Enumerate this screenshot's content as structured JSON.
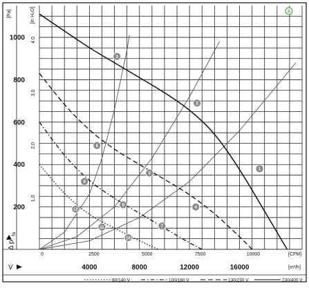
{
  "chart_data": {
    "type": "line",
    "title": "",
    "badge": "A",
    "axes": {
      "x_bottom": {
        "unit": "[m³/h]",
        "range": [
          0,
          21000
        ],
        "ticks": [
          4000,
          8000,
          12000,
          16000
        ]
      },
      "x_top": {
        "unit": "[CFM]",
        "ticks": [
          0,
          2500,
          5000,
          7500,
          10000
        ]
      },
      "y_left": {
        "unit": "[Pa]",
        "range": [
          0,
          1150
        ],
        "ticks": [
          200,
          400,
          600,
          800,
          1000
        ]
      },
      "y_inner": {
        "unit": "[in H₂O]",
        "ticks": [
          1.0,
          2.0,
          3.0,
          4.0
        ]
      },
      "y_symbol": "Δ p",
      "y_symbol_sub": "fa",
      "x_symbol": "V̇"
    },
    "grid": true,
    "legend_position": "bottom",
    "series": [
      {
        "name": "230/400 V",
        "style": "solid",
        "points": [
          [
            0,
            1110
          ],
          [
            2000,
            1030
          ],
          [
            4000,
            950
          ],
          [
            6000,
            880
          ],
          [
            8000,
            810
          ],
          [
            10000,
            740
          ],
          [
            12000,
            660
          ],
          [
            14000,
            550
          ],
          [
            16000,
            380
          ],
          [
            18000,
            180
          ],
          [
            19800,
            0
          ]
        ]
      },
      {
        "name": "130/230 V",
        "style": "dashed",
        "points": [
          [
            0,
            830
          ],
          [
            2000,
            680
          ],
          [
            4000,
            560
          ],
          [
            6000,
            470
          ],
          [
            8000,
            400
          ],
          [
            10000,
            330
          ],
          [
            12000,
            260
          ],
          [
            14000,
            170
          ],
          [
            16000,
            60
          ],
          [
            17000,
            0
          ]
        ]
      },
      {
        "name": "100/180 V",
        "style": "dashdot",
        "points": [
          [
            0,
            600
          ],
          [
            2000,
            440
          ],
          [
            4000,
            320
          ],
          [
            6000,
            240
          ],
          [
            8000,
            170
          ],
          [
            10000,
            100
          ],
          [
            12000,
            30
          ],
          [
            13000,
            0
          ]
        ]
      },
      {
        "name": "80/140 V",
        "style": "dotted",
        "points": [
          [
            0,
            400
          ],
          [
            2000,
            260
          ],
          [
            4000,
            160
          ],
          [
            6000,
            100
          ],
          [
            8000,
            40
          ],
          [
            9500,
            0
          ]
        ]
      }
    ],
    "system_curves": [
      {
        "points": [
          [
            0,
            0
          ],
          [
            2000,
            80
          ],
          [
            4000,
            260
          ],
          [
            5000,
            430
          ],
          [
            6000,
            660
          ],
          [
            7000,
            940
          ],
          [
            7200,
            1010
          ]
        ]
      },
      {
        "points": [
          [
            0,
            0
          ],
          [
            3000,
            60
          ],
          [
            6000,
            200
          ],
          [
            9000,
            430
          ],
          [
            12000,
            720
          ],
          [
            14400,
            980
          ]
        ]
      },
      {
        "points": [
          [
            0,
            0
          ],
          [
            4000,
            40
          ],
          [
            8000,
            150
          ],
          [
            12000,
            320
          ],
          [
            16000,
            560
          ],
          [
            20500,
            880
          ]
        ]
      }
    ],
    "operating_points": [
      {
        "label": "1",
        "x": 17600,
        "y": 380
      },
      {
        "label": "2",
        "x": 12600,
        "y": 690
      },
      {
        "label": "3",
        "x": 6200,
        "y": 910
      },
      {
        "label": "4",
        "x": 12500,
        "y": 200
      },
      {
        "label": "5",
        "x": 8800,
        "y": 360
      },
      {
        "label": "6",
        "x": 4600,
        "y": 490
      },
      {
        "label": "7",
        "x": 9800,
        "y": 110
      },
      {
        "label": "8",
        "x": 6700,
        "y": 210
      },
      {
        "label": "9",
        "x": 3600,
        "y": 320
      },
      {
        "label": "10",
        "x": 7100,
        "y": 55
      },
      {
        "label": "11",
        "x": 5000,
        "y": 105
      },
      {
        "label": "12",
        "x": 2900,
        "y": 190
      }
    ]
  }
}
